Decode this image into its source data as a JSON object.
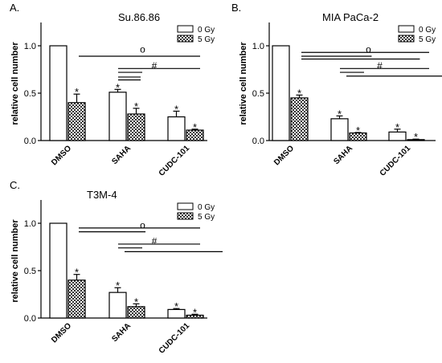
{
  "chart_data": [
    {
      "panel_label": "A.",
      "type": "bar",
      "title": "Su.86.86",
      "ylabel": "relative cell number",
      "xlabel": "",
      "ylim": [
        0,
        1.25
      ],
      "yticks": [
        "0.0",
        "0.5",
        "1.0"
      ],
      "categories": [
        "DMSO",
        "SAHA",
        "CUDC-101"
      ],
      "legend_position": "top-right",
      "series": [
        {
          "name": "0 Gy",
          "values": [
            1.0,
            0.51,
            0.25
          ],
          "errors": [
            0.0,
            0.03,
            0.06
          ],
          "stars": [
            "",
            "*",
            "*"
          ]
        },
        {
          "name": "5 Gy",
          "values": [
            0.4,
            0.28,
            0.11
          ],
          "errors": [
            0.09,
            0.06,
            0.01
          ],
          "stars": [
            "*",
            "*",
            "*"
          ]
        }
      ],
      "brackets": [
        {
          "symbol": "o",
          "label_value": 0.96,
          "line_values": [
            0.89
          ]
        },
        {
          "symbol": "#",
          "label_value": 0.79,
          "line_values": [
            0.76,
            0.72
          ]
        },
        {
          "symbol": "",
          "label_value": null,
          "line_values": [
            0.67,
            0.64
          ]
        }
      ]
    },
    {
      "panel_label": "B.",
      "type": "bar",
      "title": "MIA PaCa-2",
      "ylabel": "relative cell number",
      "xlabel": "",
      "ylim": [
        0,
        1.25
      ],
      "yticks": [
        "0.0",
        "0.5",
        "1.0"
      ],
      "categories": [
        "DMSO",
        "SAHA",
        "CUDC-101"
      ],
      "legend_position": "top-right",
      "series": [
        {
          "name": "0 Gy",
          "values": [
            1.0,
            0.23,
            0.09
          ],
          "errors": [
            0.0,
            0.03,
            0.03
          ],
          "stars": [
            "",
            "*",
            "*"
          ]
        },
        {
          "name": "5 Gy",
          "values": [
            0.45,
            0.08,
            0.01
          ],
          "errors": [
            0.03,
            0.005,
            0.005
          ],
          "stars": [
            "*",
            "*",
            "*"
          ]
        }
      ],
      "brackets": [
        {
          "symbol": "o",
          "label_value": 0.96,
          "line_values": [
            0.93,
            0.89,
            0.86
          ]
        },
        {
          "symbol": "#",
          "label_value": 0.79,
          "line_values": [
            0.76,
            0.72,
            0.68
          ]
        }
      ]
    },
    {
      "panel_label": "C.",
      "type": "bar",
      "title": "T3M-4",
      "ylabel": "relative cell number",
      "xlabel": "",
      "ylim": [
        0,
        1.25
      ],
      "yticks": [
        "0.0",
        "0.5",
        "1.0"
      ],
      "categories": [
        "DMSO",
        "SAHA",
        "CUDC-101"
      ],
      "legend_position": "top-right",
      "series": [
        {
          "name": "0 Gy",
          "values": [
            1.0,
            0.27,
            0.09
          ],
          "errors": [
            0.0,
            0.05,
            0.01
          ],
          "stars": [
            "",
            "*",
            "*"
          ]
        },
        {
          "name": "5 Gy",
          "values": [
            0.4,
            0.12,
            0.03
          ],
          "errors": [
            0.06,
            0.03,
            0.01
          ],
          "stars": [
            "*",
            "*",
            "*"
          ]
        }
      ],
      "brackets": [
        {
          "symbol": "o",
          "label_value": 0.98,
          "line_values": [
            0.95,
            0.91
          ]
        },
        {
          "symbol": "#",
          "label_value": 0.81,
          "line_values": [
            0.78,
            0.74,
            0.7
          ]
        }
      ]
    }
  ]
}
